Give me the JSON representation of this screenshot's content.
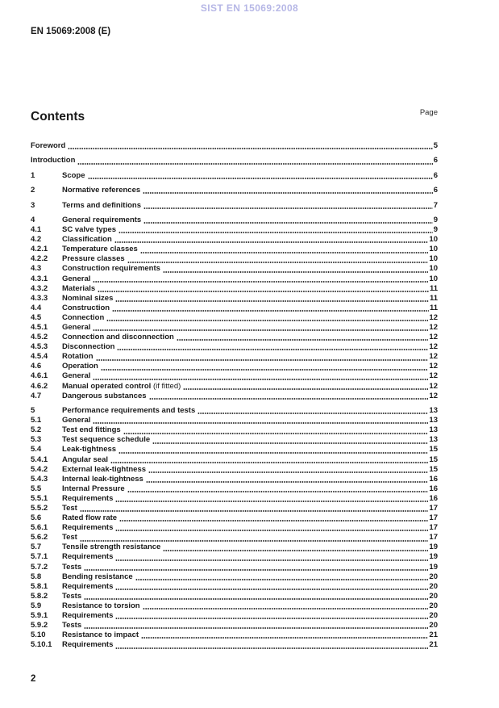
{
  "watermark": "SIST EN 15069:2008",
  "doc_ref": "EN 15069:2008 (E)",
  "contents": {
    "title": "Contents",
    "page_label": "Page"
  },
  "colors": {
    "watermark": "#b6b7e6",
    "text": "#1a1a1a"
  },
  "toc": [
    {
      "num": "",
      "title": "Foreword",
      "page": "5",
      "gap": false
    },
    {
      "num": "",
      "title": "Introduction",
      "page": "6",
      "gap": true
    },
    {
      "num": "1",
      "title": "Scope",
      "page": "6",
      "gap": true
    },
    {
      "num": "2",
      "title": "Normative references",
      "page": "6",
      "gap": true
    },
    {
      "num": "3",
      "title": "Terms and definitions",
      "page": "7",
      "gap": true
    },
    {
      "num": "4",
      "title": "General requirements",
      "page": "9",
      "gap": true
    },
    {
      "num": "4.1",
      "title": "SC valve types",
      "page": "9"
    },
    {
      "num": "4.2",
      "title": "Classification",
      "page": "10"
    },
    {
      "num": "4.2.1",
      "title": "Temperature classes",
      "page": "10"
    },
    {
      "num": "4.2.2",
      "title": "Pressure classes",
      "page": "10"
    },
    {
      "num": "4.3",
      "title": "Construction requirements",
      "page": "10"
    },
    {
      "num": "4.3.1",
      "title": "General",
      "page": "10"
    },
    {
      "num": "4.3.2",
      "title": "Materials",
      "page": "11"
    },
    {
      "num": "4.3.3",
      "title": "Nominal sizes",
      "page": "11"
    },
    {
      "num": "4.4",
      "title": "Construction",
      "page": "11"
    },
    {
      "num": "4.5",
      "title": "Connection",
      "page": "12"
    },
    {
      "num": "4.5.1",
      "title": "General",
      "page": "12"
    },
    {
      "num": "4.5.2",
      "title": "Connection and disconnection",
      "page": "12"
    },
    {
      "num": "4.5.3",
      "title": "Disconnection",
      "page": "12"
    },
    {
      "num": "4.5.4",
      "title": "Rotation",
      "page": "12"
    },
    {
      "num": "4.6",
      "title": "Operation",
      "page": "12"
    },
    {
      "num": "4.6.1",
      "title": "General",
      "page": "12"
    },
    {
      "num": "4.6.2",
      "title": "Manual operated control",
      "suffix": " (if fitted)",
      "page": "12"
    },
    {
      "num": "4.7",
      "title": "Dangerous substances",
      "page": "12"
    },
    {
      "num": "5",
      "title": "Performance requirements and tests",
      "page": "13",
      "gap": true
    },
    {
      "num": "5.1",
      "title": "General",
      "page": "13"
    },
    {
      "num": "5.2",
      "title": "Test end fittings",
      "page": "13"
    },
    {
      "num": "5.3",
      "title": "Test sequence schedule",
      "page": "13"
    },
    {
      "num": "5.4",
      "title": "Leak-tightness",
      "page": "15"
    },
    {
      "num": "5.4.1",
      "title": "Angular seal",
      "page": "15"
    },
    {
      "num": "5.4.2",
      "title": "External leak-tightness",
      "page": "15"
    },
    {
      "num": "5.4.3",
      "title": "Internal leak-tightness",
      "page": "16"
    },
    {
      "num": "5.5",
      "title": "Internal Pressure",
      "page": "16"
    },
    {
      "num": "5.5.1",
      "title": "Requirements",
      "page": "16"
    },
    {
      "num": "5.5.2",
      "title": "Test",
      "page": "17"
    },
    {
      "num": "5.6",
      "title": "Rated flow rate",
      "page": "17"
    },
    {
      "num": "5.6.1",
      "title": "Requirements",
      "page": "17"
    },
    {
      "num": "5.6.2",
      "title": "Test",
      "page": "17"
    },
    {
      "num": "5.7",
      "title": "Tensile strength resistance",
      "page": "19"
    },
    {
      "num": "5.7.1",
      "title": "Requirements",
      "page": "19"
    },
    {
      "num": "5.7.2",
      "title": "Tests",
      "page": "19"
    },
    {
      "num": "5.8",
      "title": "Bending resistance",
      "page": "20"
    },
    {
      "num": "5.8.1",
      "title": "Requirements",
      "page": "20"
    },
    {
      "num": "5.8.2",
      "title": "Tests",
      "page": "20"
    },
    {
      "num": "5.9",
      "title": "Resistance to torsion",
      "page": "20"
    },
    {
      "num": "5.9.1",
      "title": "Requirements",
      "page": "20"
    },
    {
      "num": "5.9.2",
      "title": "Tests",
      "page": "20"
    },
    {
      "num": "5.10",
      "title": "Resistance to impact",
      "page": "21"
    },
    {
      "num": "5.10.1",
      "title": "Requirements",
      "page": "21"
    }
  ],
  "footer": {
    "page_number": "2"
  }
}
